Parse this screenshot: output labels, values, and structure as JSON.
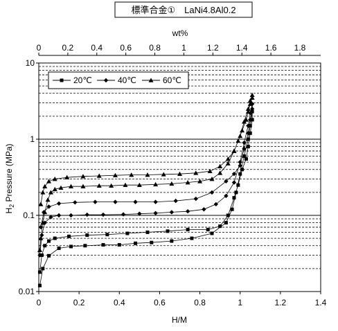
{
  "chart_data": {
    "type": "scatter",
    "title": "標準合金①　LaNi4.8Al0.2",
    "xlabel": "H/M",
    "ylabel": "H2 Pressure (MPa)",
    "ylabel_main": "H",
    "ylabel_sub": "2",
    "ylabel_rest": " Pressure (MPa)",
    "top_axis_label": "wt%",
    "xlim": [
      0,
      1.4
    ],
    "ylim": [
      0.01,
      10
    ],
    "yscale": "log",
    "x_ticks": [
      "0",
      "0.2",
      "0.4",
      "0.6",
      "0.8",
      "1",
      "1.2",
      "1.4"
    ],
    "top_xlim": [
      0,
      1.8
    ],
    "top_ticks": [
      "0",
      "0.2",
      "0.4",
      "0.6",
      "0.8",
      "1",
      "1.2",
      "1.4",
      "1.6",
      "1.8"
    ],
    "y_ticks": [
      "0.01",
      "0.1",
      "1",
      "10"
    ],
    "legend_position": "top-left",
    "grid": "horizontal minor dashed",
    "series": [
      {
        "name": "20℃",
        "marker": "square",
        "points": [
          [
            0.005,
            0.012
          ],
          [
            0.02,
            0.02
          ],
          [
            0.05,
            0.0295
          ],
          [
            0.1,
            0.037
          ],
          [
            0.16,
            0.039
          ],
          [
            0.23,
            0.04
          ],
          [
            0.32,
            0.041
          ],
          [
            0.4,
            0.041
          ],
          [
            0.48,
            0.043
          ],
          [
            0.56,
            0.044
          ],
          [
            0.66,
            0.046
          ],
          [
            0.76,
            0.05
          ],
          [
            0.86,
            0.058
          ],
          [
            0.93,
            0.08
          ],
          [
            0.96,
            0.12
          ],
          [
            0.98,
            0.2
          ],
          [
            1.0,
            0.35
          ],
          [
            1.02,
            0.6
          ],
          [
            1.04,
            1.0
          ],
          [
            1.05,
            1.5
          ],
          [
            1.06,
            2.3
          ],
          [
            1.06,
            1.8
          ],
          [
            1.05,
            1.2
          ],
          [
            1.04,
            0.8
          ],
          [
            1.03,
            0.55
          ],
          [
            1.01,
            0.4
          ],
          [
            0.99,
            0.25
          ],
          [
            0.97,
            0.17
          ],
          [
            0.94,
            0.1
          ],
          [
            0.9,
            0.072
          ],
          [
            0.84,
            0.065
          ],
          [
            0.74,
            0.065
          ],
          [
            0.64,
            0.062
          ],
          [
            0.54,
            0.06
          ],
          [
            0.44,
            0.058
          ],
          [
            0.34,
            0.056
          ],
          [
            0.24,
            0.055
          ],
          [
            0.15,
            0.053
          ],
          [
            0.08,
            0.05
          ],
          [
            0.05,
            0.046
          ],
          [
            0.03,
            0.04
          ],
          [
            0.015,
            0.03
          ],
          [
            0.005,
            0.018
          ]
        ]
      },
      {
        "name": "40℃",
        "marker": "diamond",
        "points": [
          [
            0.005,
            0.03
          ],
          [
            0.015,
            0.055
          ],
          [
            0.03,
            0.08
          ],
          [
            0.06,
            0.095
          ],
          [
            0.1,
            0.1
          ],
          [
            0.16,
            0.1
          ],
          [
            0.24,
            0.102
          ],
          [
            0.32,
            0.102
          ],
          [
            0.42,
            0.103
          ],
          [
            0.5,
            0.105
          ],
          [
            0.58,
            0.107
          ],
          [
            0.66,
            0.11
          ],
          [
            0.74,
            0.113
          ],
          [
            0.82,
            0.12
          ],
          [
            0.88,
            0.14
          ],
          [
            0.93,
            0.18
          ],
          [
            0.97,
            0.27
          ],
          [
            1.0,
            0.5
          ],
          [
            1.02,
            0.9
          ],
          [
            1.04,
            1.5
          ],
          [
            1.05,
            2.2
          ],
          [
            1.06,
            2.9
          ],
          [
            1.06,
            2.5
          ],
          [
            1.05,
            1.8
          ],
          [
            1.04,
            1.2
          ],
          [
            1.02,
            0.75
          ],
          [
            1.0,
            0.45
          ],
          [
            0.97,
            0.35
          ],
          [
            0.93,
            0.28
          ],
          [
            0.86,
            0.2
          ],
          [
            0.78,
            0.165
          ],
          [
            0.68,
            0.155
          ],
          [
            0.58,
            0.15
          ],
          [
            0.48,
            0.15
          ],
          [
            0.38,
            0.15
          ],
          [
            0.28,
            0.15
          ],
          [
            0.18,
            0.148
          ],
          [
            0.1,
            0.143
          ],
          [
            0.05,
            0.13
          ],
          [
            0.025,
            0.11
          ],
          [
            0.01,
            0.07
          ]
        ]
      },
      {
        "name": "60℃",
        "marker": "triangle",
        "points": [
          [
            0.005,
            0.035
          ],
          [
            0.01,
            0.05
          ],
          [
            0.02,
            0.08
          ],
          [
            0.03,
            0.11
          ],
          [
            0.045,
            0.16
          ],
          [
            0.06,
            0.2
          ],
          [
            0.08,
            0.22
          ],
          [
            0.11,
            0.23
          ],
          [
            0.16,
            0.24
          ],
          [
            0.22,
            0.24
          ],
          [
            0.3,
            0.245
          ],
          [
            0.36,
            0.245
          ],
          [
            0.43,
            0.25
          ],
          [
            0.5,
            0.25
          ],
          [
            0.58,
            0.255
          ],
          [
            0.66,
            0.26
          ],
          [
            0.74,
            0.27
          ],
          [
            0.8,
            0.28
          ],
          [
            0.86,
            0.3
          ],
          [
            0.9,
            0.36
          ],
          [
            0.94,
            0.48
          ],
          [
            0.97,
            0.7
          ],
          [
            1.0,
            1.1
          ],
          [
            1.02,
            1.7
          ],
          [
            1.04,
            2.5
          ],
          [
            1.05,
            3.2
          ],
          [
            1.06,
            3.8
          ],
          [
            1.06,
            3.5
          ],
          [
            1.05,
            2.9
          ],
          [
            1.04,
            2.3
          ],
          [
            1.03,
            1.8
          ],
          [
            1.01,
            1.3
          ],
          [
            0.99,
            0.95
          ],
          [
            0.97,
            0.7
          ],
          [
            0.94,
            0.55
          ],
          [
            0.9,
            0.44
          ],
          [
            0.85,
            0.38
          ],
          [
            0.78,
            0.36
          ],
          [
            0.7,
            0.35
          ],
          [
            0.62,
            0.345
          ],
          [
            0.54,
            0.34
          ],
          [
            0.46,
            0.34
          ],
          [
            0.38,
            0.335
          ],
          [
            0.3,
            0.33
          ],
          [
            0.22,
            0.325
          ],
          [
            0.14,
            0.315
          ],
          [
            0.08,
            0.3
          ],
          [
            0.05,
            0.28
          ],
          [
            0.03,
            0.24
          ],
          [
            0.02,
            0.2
          ],
          [
            0.01,
            0.14
          ]
        ]
      }
    ]
  }
}
